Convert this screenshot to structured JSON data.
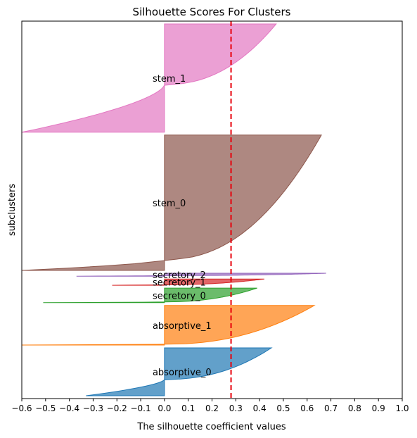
{
  "chart_data": {
    "type": "area",
    "title": "Silhouette Scores For Clusters",
    "xlabel": "The silhouette coefficient values",
    "ylabel": "subclusters",
    "xlim": [
      -0.6,
      1.0
    ],
    "xticks": [
      "-0.6",
      "-0.5",
      "-0.4",
      "-0.3",
      "-0.2",
      "-0.1",
      "0.0",
      "0.1",
      "0.2",
      "0.3",
      "0.4",
      "0.5",
      "0.6",
      "0.7",
      "0.8",
      "0.9",
      "1.0"
    ],
    "yticks": [],
    "grid": false,
    "legend": "none",
    "reference_line": {
      "x": 0.28,
      "color": "#e8000b",
      "style": "dashed"
    },
    "clusters": [
      {
        "name": "absorptive_0",
        "color": "#1f77b4",
        "size": 230,
        "max": 0.45,
        "min": -0.33,
        "min_frac": 0.34
      },
      {
        "name": "absorptive_1",
        "color": "#ff7f0e",
        "size": 190,
        "max": 0.63,
        "min": -0.6,
        "min_frac": 0.02
      },
      {
        "name": "secretory_0",
        "color": "#2ca02c",
        "size": 70,
        "max": 0.39,
        "min": -0.51,
        "min_frac": 0.05
      },
      {
        "name": "secretory_1",
        "color": "#d62728",
        "size": 30,
        "max": 0.42,
        "min": -0.22,
        "min_frac": 0.08
      },
      {
        "name": "secretory_2",
        "color": "#9467bd",
        "size": 14,
        "max": 0.68,
        "min": -0.37,
        "min_frac": 0.2
      },
      {
        "name": "stem_0",
        "color": "#8c564b",
        "size": 650,
        "max": 0.66,
        "min": -0.6,
        "min_frac": 0.08
      },
      {
        "name": "stem_1",
        "color": "#e377c2",
        "size": 520,
        "max": 0.47,
        "min": -0.6,
        "min_frac": 0.44
      }
    ]
  }
}
